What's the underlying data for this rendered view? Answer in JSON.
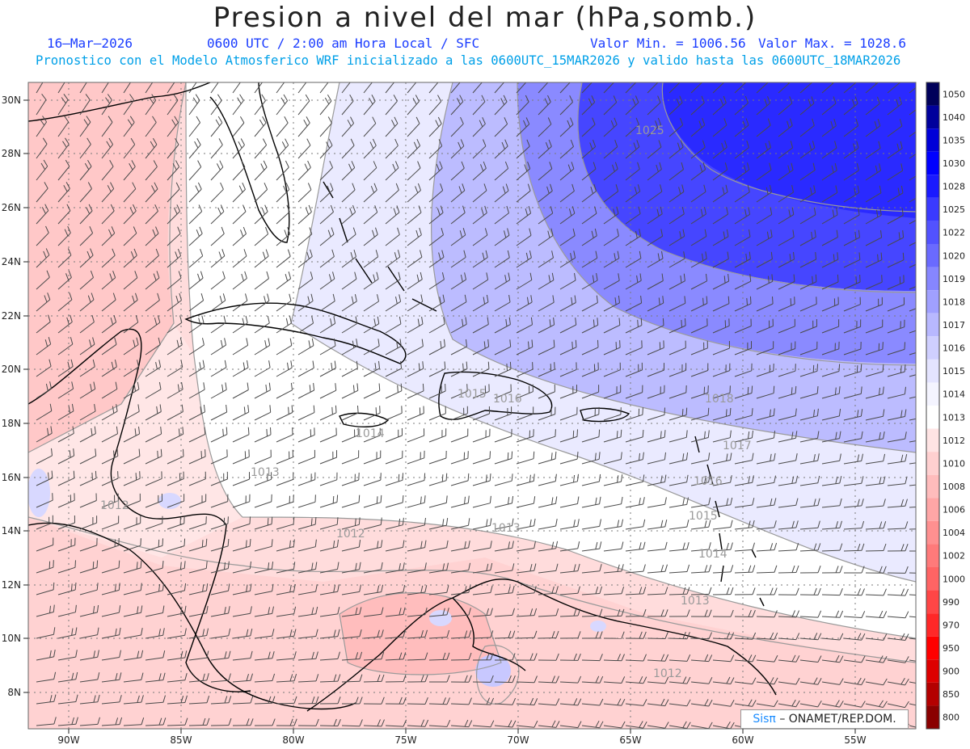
{
  "header": {
    "title": "Presion a nivel del mar (hPa,somb.)",
    "date": "16–Mar–2026",
    "time_info": "0600 UTC / 2:00 am Hora Local / SFC",
    "min_label": "Valor Min. = 1006.56",
    "max_label": "Valor Max. = 1028.6",
    "model_info": "Pronostico con el Modelo Atmosferico WRF inicializado a las 0600UTC_15MAR2026 y valido hasta las  0600UTC_18MAR2026"
  },
  "axes": {
    "lat_labels": [
      "30N",
      "28N",
      "26N",
      "24N",
      "22N",
      "20N",
      "18N",
      "16N",
      "14N",
      "12N",
      "10N",
      "8N"
    ],
    "lon_labels": [
      "90W",
      "85W",
      "80W",
      "75W",
      "70W",
      "65W",
      "60W",
      "55W"
    ]
  },
  "colorbar": {
    "levels": [
      "1050",
      "1040",
      "1035",
      "1030",
      "1028",
      "1025",
      "1022",
      "1020",
      "1019",
      "1018",
      "1017",
      "1016",
      "1015",
      "1014",
      "1013",
      "1012",
      "1010",
      "1008",
      "1006",
      "1004",
      "1002",
      "1000",
      "990",
      "970",
      "950",
      "900",
      "850",
      "800"
    ],
    "colors": [
      "#00005a",
      "#00009c",
      "#0000d8",
      "#0000ff",
      "#1a1aff",
      "#3a3aff",
      "#5252ff",
      "#6a6aff",
      "#8686ff",
      "#a0a0ff",
      "#b8b8ff",
      "#cfcfff",
      "#e4e4ff",
      "#f4f4ff",
      "#ffffff",
      "#ffe4e4",
      "#ffd0d0",
      "#ffbcbc",
      "#ffa6a6",
      "#ff9090",
      "#ff7a7a",
      "#ff6464",
      "#ff4646",
      "#ff2828",
      "#ff0000",
      "#dd0000",
      "#b40000",
      "#8a0000"
    ]
  },
  "contour_labels": [
    {
      "text": "1025"
    },
    {
      "text": "1018"
    },
    {
      "text": "1017"
    },
    {
      "text": "1016"
    },
    {
      "text": "1015"
    },
    {
      "text": "1014"
    },
    {
      "text": "1013"
    },
    {
      "text": "1013"
    },
    {
      "text": "1012"
    },
    {
      "text": "1012"
    },
    {
      "text": "1014"
    },
    {
      "text": "1015"
    },
    {
      "text": "1016"
    },
    {
      "text": "1013"
    },
    {
      "text": "1012"
    }
  ],
  "credit": {
    "brand": "Sisπ",
    "org": "– ONAMET/REP.DOM."
  }
}
